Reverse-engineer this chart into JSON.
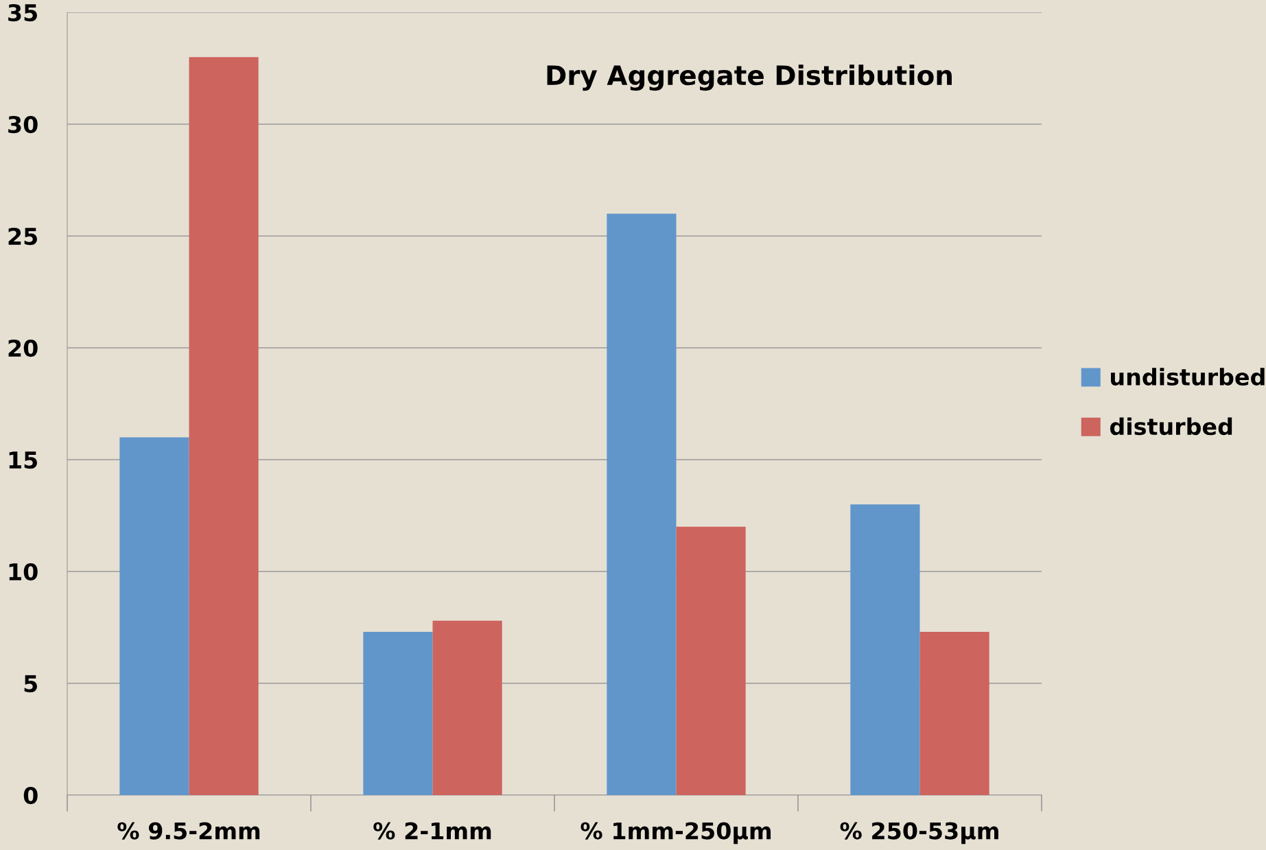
{
  "chart_data": {
    "type": "bar",
    "title": "Dry Aggregate Distribution",
    "categories": [
      "% 9.5-2mm",
      "% 2-1mm",
      "% 1mm-250µm",
      "% 250-53µm"
    ],
    "series": [
      {
        "name": "undisturbed",
        "color": "#6196cb",
        "values": [
          16,
          7.3,
          26,
          13
        ]
      },
      {
        "name": "disturbed",
        "color": "#cd645e",
        "values": [
          33,
          7.8,
          12,
          7.3
        ]
      }
    ],
    "ylim": [
      0,
      35
    ],
    "yticks": [
      0,
      5,
      10,
      15,
      20,
      25,
      30,
      35
    ],
    "grid": "y",
    "legend": "right"
  }
}
